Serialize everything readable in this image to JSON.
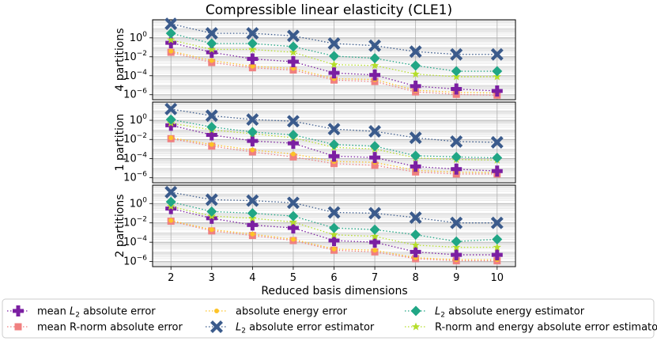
{
  "chart_data": {
    "type": "line",
    "title": "Compressible linear elasticity (CLE1)",
    "xlabel": "Reduced basis dimensions",
    "x": [
      2,
      3,
      4,
      5,
      6,
      7,
      8,
      9,
      10
    ],
    "x_tick_labels": [
      "2",
      "3",
      "4",
      "5",
      "6",
      "7",
      "8",
      "9",
      "10"
    ],
    "yscale": "log",
    "legend_position": "bottom",
    "legend": [
      {
        "key": "mean_l2",
        "label_prefix": "mean ",
        "label_math": "L",
        "label_sub": "2",
        "label_suffix": " absolute error",
        "color": "#7b1fa2",
        "marker": "plus"
      },
      {
        "key": "mean_r",
        "label_prefix": "mean R-norm absolute error",
        "label_math": "",
        "label_sub": "",
        "label_suffix": "",
        "color": "#f08080",
        "marker": "square"
      },
      {
        "key": "energy",
        "label_prefix": "absolute energy error",
        "label_math": "",
        "label_sub": "",
        "label_suffix": "",
        "color": "#fdc328",
        "marker": "circle"
      },
      {
        "key": "l2_est",
        "label_prefix": "",
        "label_math": "L",
        "label_sub": "2",
        "label_suffix": " absolute error estimator",
        "color": "#3b5b8c",
        "marker": "x"
      },
      {
        "key": "l2_energy_est",
        "label_prefix": "",
        "label_math": "L",
        "label_sub": "2",
        "label_suffix": " absolute energy estimator",
        "color": "#21a685",
        "marker": "diamond"
      },
      {
        "key": "rnorm_est",
        "label_prefix": "R-norm and energy absolute error estimator",
        "label_math": "",
        "label_sub": "",
        "label_suffix": "",
        "color": "#b5de2b",
        "marker": "star"
      }
    ],
    "panels": [
      {
        "ylabel": "4 partitions",
        "ylim": [
          3e-07,
          80
        ],
        "yticks": [
          {
            "exp": "0",
            "value": 1
          },
          {
            "exp": "−2",
            "value": 0.01
          },
          {
            "exp": "−4",
            "value": 0.0001
          },
          {
            "exp": "−6",
            "value": 1e-06
          }
        ],
        "series": {
          "mean_l2": [
            0.3,
            0.03,
            0.006,
            0.003,
            0.0002,
            0.00012,
            8e-06,
            4e-06,
            2.5e-06
          ],
          "mean_r": [
            0.03,
            0.0025,
            0.0007,
            0.0004,
            3.5e-05,
            2.5e-05,
            2e-06,
            1.1e-06,
            9e-07
          ],
          "energy": [
            0.04,
            0.004,
            0.001,
            0.0006,
            5e-05,
            4e-05,
            3e-06,
            1.8e-06,
            1.5e-06
          ],
          "l2_est": [
            30,
            3,
            3,
            1.6,
            0.25,
            0.15,
            0.035,
            0.018,
            0.018
          ],
          "l2_energy_est": [
            3,
            0.25,
            0.25,
            0.12,
            0.012,
            0.007,
            0.0012,
            0.0003,
            0.0003
          ],
          "rnorm_est": [
            0.6,
            0.06,
            0.06,
            0.03,
            0.0015,
            0.0012,
            0.00015,
            8e-05,
            8e-05
          ]
        }
      },
      {
        "ylabel": "1 partition",
        "ylim": [
          3e-07,
          80
        ],
        "yticks": [
          {
            "exp": "0",
            "value": 1
          },
          {
            "exp": "−2",
            "value": 0.01
          },
          {
            "exp": "−4",
            "value": 0.0001
          },
          {
            "exp": "−6",
            "value": 1e-06
          }
        ],
        "series": {
          "mean_l2": [
            0.3,
            0.03,
            0.007,
            0.004,
            0.00018,
            0.00013,
            1.5e-05,
            8e-06,
            5e-06
          ],
          "mean_r": [
            0.012,
            0.002,
            0.0005,
            0.00015,
            3e-05,
            2e-05,
            4e-06,
            2.5e-06,
            2.5e-06
          ],
          "energy": [
            0.015,
            0.003,
            0.0008,
            0.0003,
            5e-05,
            4e-05,
            6e-06,
            3.8e-06,
            3.5e-06
          ],
          "l2_est": [
            15,
            3,
            1.2,
            0.8,
            0.12,
            0.07,
            0.015,
            0.006,
            0.005
          ],
          "l2_energy_est": [
            1.2,
            0.2,
            0.06,
            0.03,
            0.003,
            0.002,
            0.0002,
            0.00015,
            0.00012
          ],
          "rnorm_est": [
            0.5,
            0.1,
            0.04,
            0.015,
            0.0015,
            0.001,
            0.00012,
            8e-05,
            7e-05
          ]
        }
      },
      {
        "ylabel": "2 partitions",
        "ylim": [
          3e-07,
          80
        ],
        "yticks": [
          {
            "exp": "0",
            "value": 1
          },
          {
            "exp": "−2",
            "value": 0.01
          },
          {
            "exp": "−4",
            "value": 0.0001
          },
          {
            "exp": "−6",
            "value": 1e-06
          }
        ],
        "series": {
          "mean_l2": [
            0.3,
            0.03,
            0.006,
            0.003,
            0.00015,
            0.0001,
            1e-05,
            5e-06,
            5e-06
          ],
          "mean_r": [
            0.015,
            0.0015,
            0.0005,
            0.00015,
            1.5e-05,
            1e-05,
            2e-06,
            1.2e-06,
            1.2e-06
          ],
          "energy": [
            0.018,
            0.002,
            0.0007,
            0.0002,
            2e-05,
            1.5e-05,
            2.5e-06,
            1.6e-06,
            1.6e-06
          ],
          "l2_est": [
            15,
            2.5,
            2,
            1.2,
            0.12,
            0.1,
            0.035,
            0.01,
            0.01
          ],
          "l2_energy_est": [
            1.5,
            0.15,
            0.1,
            0.05,
            0.003,
            0.002,
            0.0006,
            0.00012,
            0.0002
          ],
          "rnorm_est": [
            0.5,
            0.05,
            0.03,
            0.012,
            0.0006,
            0.0004,
            5e-05,
            3e-05,
            3e-05
          ]
        }
      }
    ]
  }
}
